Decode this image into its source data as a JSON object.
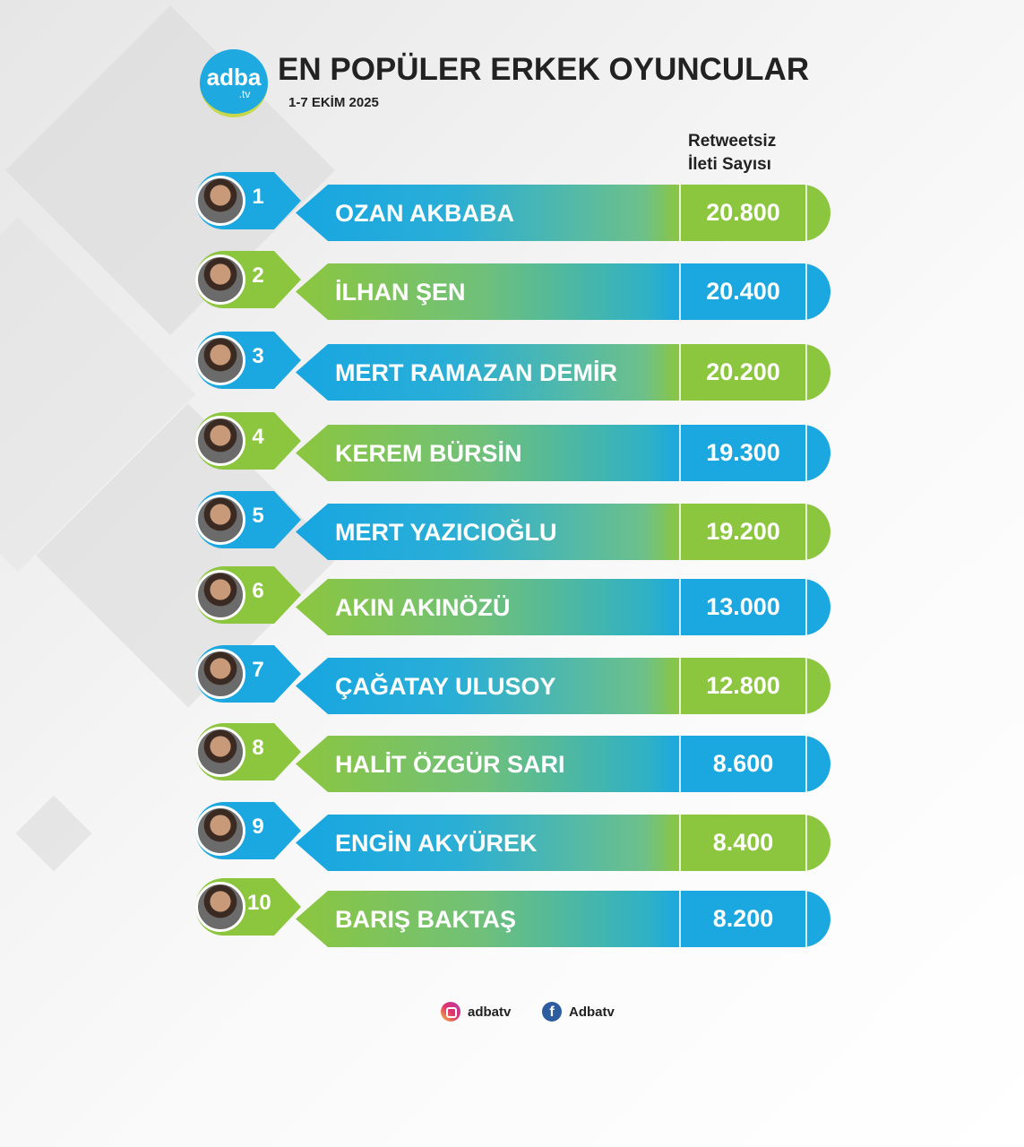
{
  "header": {
    "logo_text": "adba",
    "logo_sub": ".tv",
    "title": "EN POPÜLER ERKEK OYUNCULAR",
    "date": "1-7 EKİM 2025",
    "column_head_1": "Retweetsiz",
    "column_head_2": "İleti Sayısı"
  },
  "colors": {
    "blue": "#1ba7e0",
    "green": "#8cc63f"
  },
  "chart_data": {
    "type": "table",
    "columns": [
      "Rank",
      "Name",
      "Retweetsiz İleti Sayısı"
    ],
    "rows": [
      {
        "rank": "1",
        "name": "OZAN AKBABA",
        "value": "20.800"
      },
      {
        "rank": "2",
        "name": "İLHAN ŞEN",
        "value": "20.400"
      },
      {
        "rank": "3",
        "name": "MERT RAMAZAN DEMİR",
        "value": "20.200"
      },
      {
        "rank": "4",
        "name": "KEREM BÜRSİN",
        "value": "19.300"
      },
      {
        "rank": "5",
        "name": "MERT YAZICIOĞLU",
        "value": "19.200"
      },
      {
        "rank": "6",
        "name": "AKIN AKINÖZÜ",
        "value": "13.000"
      },
      {
        "rank": "7",
        "name": "ÇAĞATAY ULUSOY",
        "value": "12.800"
      },
      {
        "rank": "8",
        "name": "HALİT ÖZGÜR SARI",
        "value": "8.600"
      },
      {
        "rank": "9",
        "name": "ENGİN AKYÜREK",
        "value": "8.400"
      },
      {
        "rank": "10",
        "name": "BARIŞ BAKTAŞ",
        "value": "8.200"
      }
    ]
  },
  "footer": {
    "instagram": "adbatv",
    "facebook": "Adbatv",
    "instagram_icon": "instagram-icon",
    "facebook_icon": "facebook-icon"
  }
}
